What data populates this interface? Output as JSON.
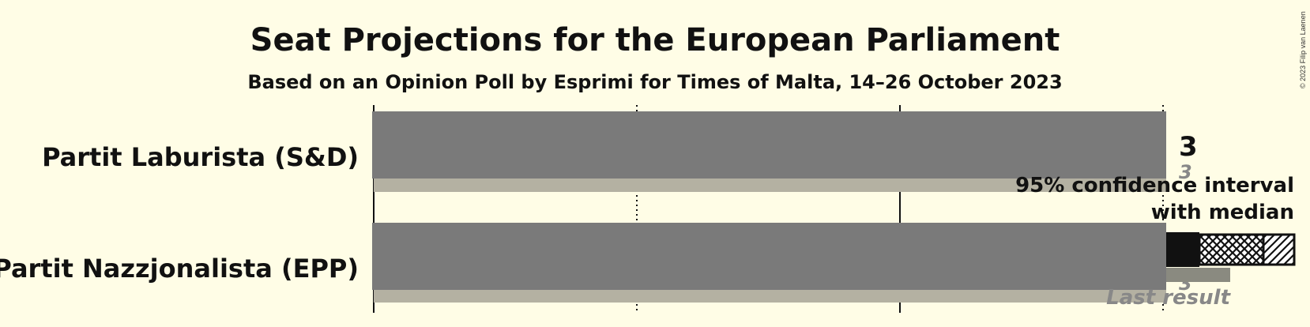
{
  "chart_data": {
    "type": "bar",
    "title": "Seat Projections for the European Parliament",
    "subtitle": "Based on an Opinion Poll by Esprimi for Times of Malta, 14–26 October 2023",
    "xlim": [
      0,
      3
    ],
    "grid": true,
    "categories": [
      "Partit Laburista (S&D)",
      "Partit Nazzjonalista (EPP)"
    ],
    "series": [
      {
        "name": "median",
        "values": [
          3,
          3
        ]
      },
      {
        "name": "last result",
        "values": [
          3,
          3
        ]
      }
    ],
    "median_labels": [
      "3",
      ""
    ],
    "last_result_labels": [
      "3",
      "3"
    ],
    "colors": {
      "background": "#fffde6",
      "bar": "#7a7a7a",
      "last_result": "#b4b1a2",
      "legend_dark": "#111111",
      "legend_last": "#8a8a80"
    },
    "legend": {
      "placement": "right",
      "ci_line1": "95% confidence interval",
      "ci_line2": "with median",
      "last_result": "Last result"
    },
    "copyright": "© 2023 Filip van Laenen"
  }
}
